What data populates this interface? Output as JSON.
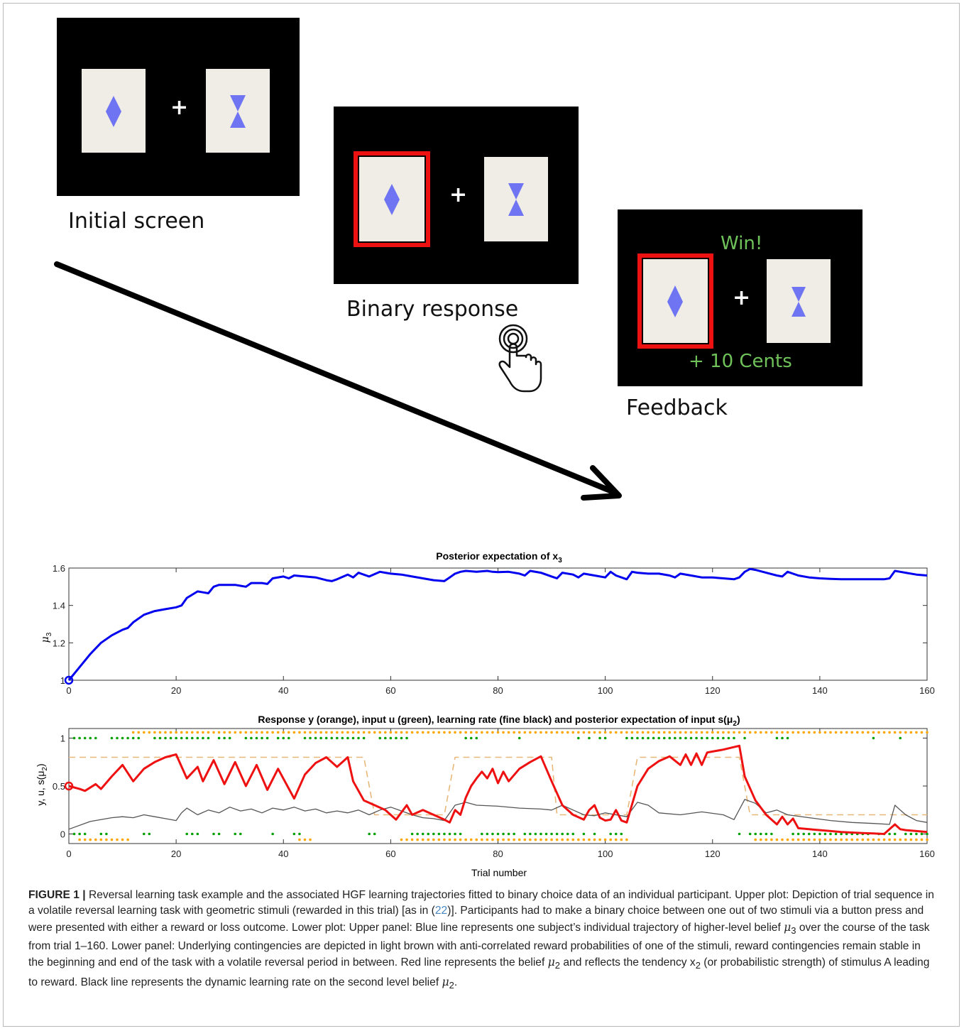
{
  "task_screens": {
    "initial": {
      "label": "Initial screen"
    },
    "response": {
      "label": "Binary response"
    },
    "feedback": {
      "label": "Feedback",
      "win_text": "Win!",
      "reward_text": "+ 10 Cents"
    },
    "fixation_symbol": "+",
    "colors": {
      "background": "#000000",
      "card": "#efede6",
      "stimulus": "#6f74f2",
      "selection": "#ee1111",
      "feedback_text": "#6fc25a"
    },
    "icons": [
      "diamond-stimulus-icon",
      "hourglass-stimulus-icon",
      "hand-press-icon",
      "arrow-icon"
    ]
  },
  "chart_data": [
    {
      "type": "line",
      "title_main": "Posterior expectation of x",
      "title_sub": "3",
      "ylabel_main": "μ",
      "ylabel_sub": "3",
      "xlim": [
        0,
        160
      ],
      "ylim": [
        1,
        1.6
      ],
      "xticks": [
        "0",
        "20",
        "40",
        "60",
        "80",
        "100",
        "120",
        "140",
        "160"
      ],
      "yticks": [
        "1",
        "1.2",
        "1.4",
        "1.6"
      ],
      "series": [
        {
          "color": "#0000ee",
          "x": [
            0,
            2,
            4,
            6,
            8,
            10,
            11,
            12,
            14,
            16,
            18,
            20,
            21,
            22,
            24,
            25,
            26,
            27,
            28,
            30,
            31,
            32,
            33,
            34,
            36,
            37,
            38,
            40,
            41,
            42,
            44,
            46,
            48,
            49,
            50,
            52,
            53,
            54,
            56,
            58,
            59,
            60,
            62,
            64,
            66,
            68,
            70,
            71,
            72,
            73,
            74,
            76,
            78,
            79,
            80,
            82,
            84,
            85,
            86,
            88,
            90,
            91,
            92,
            94,
            95,
            96,
            98,
            100,
            101,
            102,
            104,
            105,
            106,
            108,
            110,
            112,
            113,
            114,
            116,
            118,
            120,
            122,
            124,
            125,
            126,
            127,
            128,
            130,
            132,
            133,
            134,
            136,
            138,
            140,
            142,
            144,
            146,
            148,
            150,
            152,
            153,
            154,
            155,
            156,
            158,
            160
          ],
          "y": [
            1.0,
            1.07,
            1.14,
            1.2,
            1.24,
            1.27,
            1.28,
            1.31,
            1.35,
            1.37,
            1.38,
            1.39,
            1.4,
            1.44,
            1.475,
            1.47,
            1.465,
            1.5,
            1.51,
            1.51,
            1.51,
            1.505,
            1.5,
            1.52,
            1.52,
            1.515,
            1.545,
            1.555,
            1.545,
            1.56,
            1.555,
            1.55,
            1.535,
            1.53,
            1.54,
            1.565,
            1.55,
            1.575,
            1.555,
            1.58,
            1.575,
            1.57,
            1.565,
            1.555,
            1.545,
            1.535,
            1.53,
            1.55,
            1.57,
            1.58,
            1.585,
            1.58,
            1.585,
            1.58,
            1.578,
            1.58,
            1.57,
            1.56,
            1.585,
            1.575,
            1.555,
            1.545,
            1.575,
            1.565,
            1.55,
            1.57,
            1.56,
            1.55,
            1.58,
            1.56,
            1.54,
            1.58,
            1.575,
            1.57,
            1.57,
            1.56,
            1.55,
            1.57,
            1.56,
            1.55,
            1.55,
            1.545,
            1.54,
            1.55,
            1.58,
            1.595,
            1.59,
            1.575,
            1.56,
            1.555,
            1.58,
            1.56,
            1.55,
            1.545,
            1.542,
            1.54,
            1.54,
            1.54,
            1.54,
            1.54,
            1.545,
            1.585,
            1.58,
            1.575,
            1.565,
            1.56
          ]
        }
      ],
      "start_marker": {
        "x": 0,
        "y": 1.0
      }
    },
    {
      "type": "line",
      "title_main": "Response y (orange), input u (green), learning rate (fine black) and posterior expectation of input s(μ",
      "title_sub": "2",
      "title_end": ")",
      "ylabel_main": "y, u, s(μ",
      "ylabel_sub": "2",
      "ylabel_end": ")",
      "xlabel": "Trial number",
      "xlim": [
        0,
        160
      ],
      "ylim": [
        -0.1,
        1.1
      ],
      "xticks": [
        "0",
        "20",
        "40",
        "60",
        "80",
        "100",
        "120",
        "140",
        "160"
      ],
      "yticks": [
        "0",
        "0.5",
        "1"
      ],
      "series": [
        {
          "color": "#ee1111",
          "x": [
            0,
            2,
            3,
            5,
            6,
            8,
            10,
            12,
            14,
            16,
            18,
            20,
            22,
            24,
            25,
            27,
            29,
            31,
            33,
            35,
            37,
            39,
            42,
            44,
            46,
            48,
            50,
            52,
            53,
            55,
            57,
            59,
            61,
            63,
            64,
            66,
            68,
            70,
            71,
            72,
            73,
            74,
            75,
            76,
            77,
            78,
            79,
            80,
            81,
            82,
            84,
            86,
            88,
            90,
            92,
            94,
            96,
            97,
            98,
            99,
            100,
            101,
            102,
            103,
            104,
            106,
            108,
            110,
            112,
            114,
            115,
            116,
            117,
            118,
            119,
            120,
            122,
            125,
            126,
            128,
            130,
            132,
            133,
            134,
            135,
            136,
            138,
            140,
            142,
            144,
            146,
            148,
            150,
            152,
            154,
            155,
            156,
            158,
            160
          ],
          "y": [
            0.5,
            0.47,
            0.45,
            0.52,
            0.47,
            0.6,
            0.72,
            0.55,
            0.68,
            0.75,
            0.8,
            0.83,
            0.58,
            0.7,
            0.55,
            0.77,
            0.52,
            0.75,
            0.5,
            0.72,
            0.46,
            0.68,
            0.37,
            0.62,
            0.74,
            0.8,
            0.7,
            0.8,
            0.55,
            0.35,
            0.3,
            0.25,
            0.15,
            0.3,
            0.2,
            0.25,
            0.2,
            0.15,
            0.12,
            0.25,
            0.2,
            0.38,
            0.5,
            0.58,
            0.65,
            0.58,
            0.68,
            0.53,
            0.65,
            0.55,
            0.68,
            0.75,
            0.81,
            0.55,
            0.3,
            0.2,
            0.15,
            0.25,
            0.3,
            0.17,
            0.14,
            0.15,
            0.25,
            0.14,
            0.12,
            0.5,
            0.68,
            0.76,
            0.81,
            0.72,
            0.83,
            0.72,
            0.84,
            0.72,
            0.85,
            0.86,
            0.88,
            0.92,
            0.6,
            0.35,
            0.2,
            0.1,
            0.18,
            0.1,
            0.16,
            0.06,
            0.05,
            0.04,
            0.03,
            0.02,
            0.015,
            0.01,
            0.005,
            0.0,
            0.1,
            0.05,
            0.04,
            0.03,
            0.02
          ]
        },
        {
          "color": "#555555",
          "x": [
            0,
            4,
            8,
            10,
            12,
            14,
            16,
            18,
            20,
            21,
            22,
            24,
            26,
            28,
            30,
            32,
            34,
            36,
            38,
            40,
            42,
            44,
            46,
            48,
            50,
            52,
            54,
            56,
            58,
            60,
            62,
            64,
            66,
            68,
            70,
            72,
            74,
            76,
            80,
            84,
            88,
            90,
            92,
            94,
            96,
            98,
            100,
            102,
            104,
            106,
            108,
            110,
            114,
            118,
            122,
            124,
            126,
            128,
            130,
            132,
            134,
            138,
            142,
            146,
            150,
            153,
            154,
            155,
            156,
            158,
            160
          ],
          "y": [
            0.05,
            0.13,
            0.17,
            0.18,
            0.17,
            0.2,
            0.18,
            0.16,
            0.14,
            0.22,
            0.27,
            0.2,
            0.25,
            0.22,
            0.28,
            0.24,
            0.26,
            0.22,
            0.27,
            0.25,
            0.28,
            0.24,
            0.26,
            0.22,
            0.24,
            0.22,
            0.25,
            0.2,
            0.25,
            0.28,
            0.24,
            0.2,
            0.17,
            0.16,
            0.14,
            0.3,
            0.33,
            0.3,
            0.29,
            0.27,
            0.26,
            0.25,
            0.3,
            0.25,
            0.2,
            0.19,
            0.22,
            0.2,
            0.18,
            0.33,
            0.3,
            0.22,
            0.2,
            0.23,
            0.2,
            0.15,
            0.36,
            0.32,
            0.22,
            0.25,
            0.2,
            0.17,
            0.14,
            0.12,
            0.11,
            0.1,
            0.3,
            0.25,
            0.2,
            0.14,
            0.12
          ]
        },
        {
          "color": "#e8b87a",
          "dashed": true,
          "x": [
            0,
            55,
            57,
            70,
            72,
            90,
            91,
            104,
            106,
            125,
            127,
            160
          ],
          "y": [
            0.8,
            0.8,
            0.2,
            0.2,
            0.8,
            0.8,
            0.2,
            0.2,
            0.8,
            0.8,
            0.2,
            0.2
          ]
        }
      ],
      "green_top_x": [
        1,
        2,
        3,
        4,
        5,
        8,
        9,
        10,
        11,
        12,
        13,
        16,
        17,
        18,
        19,
        20,
        21,
        22,
        23,
        24,
        25,
        26,
        28,
        29,
        30,
        33,
        34,
        35,
        36,
        37,
        39,
        40,
        41,
        44,
        45,
        46,
        47,
        48,
        49,
        50,
        51,
        52,
        53,
        54,
        55,
        58,
        59,
        60,
        61,
        62,
        63,
        74,
        75,
        76,
        84,
        95,
        97,
        99,
        100,
        104,
        105,
        106,
        107,
        108,
        109,
        110,
        111,
        112,
        113,
        114,
        115,
        116,
        117,
        118,
        119,
        120,
        121,
        122,
        123,
        124,
        126,
        132,
        133,
        134,
        150,
        155
      ],
      "green_bottom_x": [
        1,
        2,
        3,
        6,
        7,
        14,
        15,
        22,
        23,
        24,
        27,
        28,
        31,
        32,
        38,
        42,
        43,
        56,
        57,
        64,
        65,
        66,
        67,
        68,
        69,
        70,
        71,
        72,
        73,
        77,
        78,
        79,
        80,
        81,
        82,
        83,
        85,
        86,
        87,
        88,
        89,
        90,
        91,
        92,
        93,
        94,
        96,
        98,
        101,
        102,
        103,
        125,
        127,
        128,
        129,
        130,
        131,
        135,
        136,
        137,
        138,
        139,
        140,
        141,
        142,
        143,
        144,
        145,
        146,
        147,
        148,
        149,
        151,
        152,
        153,
        154,
        156,
        157,
        158,
        159,
        160
      ],
      "orange_top_x": [
        12,
        13,
        14,
        15,
        16,
        17,
        18,
        19,
        20,
        21,
        22,
        23,
        24,
        25,
        26,
        27,
        28,
        29,
        30,
        31,
        32,
        33,
        34,
        35,
        36,
        37,
        38,
        39,
        40,
        41,
        42,
        43,
        44,
        45,
        46,
        47,
        48,
        49,
        50,
        51,
        52,
        53,
        54,
        55,
        56,
        57,
        58,
        59,
        60,
        61,
        62,
        63,
        64,
        65,
        66,
        67,
        68,
        69,
        70,
        71,
        72,
        73,
        74,
        75,
        76,
        77,
        78,
        79,
        80,
        81,
        82,
        83,
        84,
        85,
        86,
        87,
        88,
        89,
        90,
        91,
        92,
        93,
        94,
        95,
        96,
        97,
        98,
        99,
        100,
        101,
        102,
        103,
        104,
        105,
        106,
        107,
        108,
        109,
        110,
        111,
        112,
        113,
        114,
        115,
        116,
        117,
        118,
        119,
        120,
        121,
        122,
        123,
        124,
        125,
        126,
        127,
        128,
        129,
        130,
        131,
        132,
        133,
        134,
        135,
        136,
        137,
        138,
        139,
        140,
        141,
        142,
        143,
        144,
        145,
        146,
        147,
        148,
        149,
        150,
        151,
        152,
        153,
        154,
        155,
        156,
        157,
        158,
        159,
        160
      ],
      "orange_bottom_x": [
        2,
        3,
        4,
        5,
        6,
        7,
        8,
        9,
        10,
        11,
        43,
        44,
        45,
        62,
        63,
        64,
        65,
        66,
        67,
        68,
        69,
        70,
        71,
        72,
        73,
        74,
        75,
        76,
        77,
        78,
        79,
        80,
        81,
        82,
        83,
        84,
        85,
        86,
        87,
        88,
        89,
        90,
        91,
        92,
        93,
        94,
        95,
        96,
        97,
        98,
        99,
        100,
        101,
        102,
        103,
        104,
        128,
        129,
        130,
        131,
        132,
        133,
        134,
        135,
        136,
        137,
        138,
        139,
        140,
        141,
        142,
        143,
        144,
        145,
        146,
        147,
        148,
        149,
        150,
        151,
        152,
        153,
        154,
        155,
        156,
        157,
        158,
        159,
        160
      ],
      "start_marker": {
        "x": 0,
        "y": 0.5
      }
    }
  ],
  "caption": {
    "label": "FIGURE 1 |",
    "s1": " Reversal learning task example and the associated HGF learning trajectories fitted to binary choice data of an individual participant. Upper plot: Depiction of trial sequence in a volatile reversal learning task with geometric stimuli (rewarded in this trial) [as in (",
    "ref": "22",
    "s2": ")]. Participants had to make a binary choice between one out of two stimuli via a button press and were presented with either a reward or loss outcome. Lower plot: Upper panel: Blue line represents one subject’s individual trajectory of higher-level belief ",
    "mu3": "μ",
    "mu3_sub": "3",
    "s3": " over the course of the task from trial 1–160. Lower panel: Underlying contingencies are depicted in light brown with anti-correlated reward probabilities of one of the stimuli, reward contingencies remain stable in the beginning and end of the task with a volatile reversal period in between. Red line represents the belief ",
    "mu2a": "μ",
    "mu2a_sub": "2",
    "s4": " and reflects the tendency x",
    "x2_sub": "2",
    "s5": " (or probabilistic strength) of stimulus A leading to reward. Black line represents the dynamic learning rate on the second level belief ",
    "mu2b": "μ",
    "mu2b_sub": "2",
    "s6": "."
  }
}
